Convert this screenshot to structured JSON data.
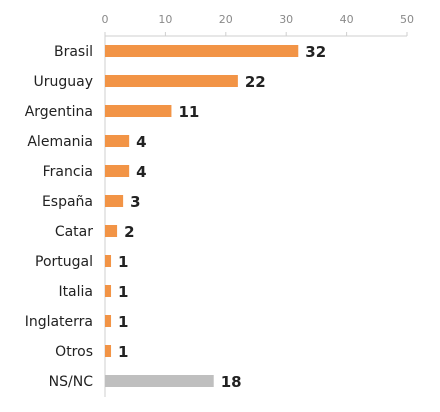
{
  "chart_data": {
    "type": "bar",
    "orientation": "horizontal",
    "categories": [
      "Brasil",
      "Uruguay",
      "Argentina",
      "Alemania",
      "Francia",
      "España",
      "Catar",
      "Portugal",
      "Italia",
      "Inglaterra",
      "Otros",
      "NS/NC"
    ],
    "values": [
      32,
      22,
      11,
      4,
      4,
      3,
      2,
      1,
      1,
      1,
      1,
      18
    ],
    "value_labels": [
      "32",
      "22",
      "11",
      "4",
      "4",
      "3",
      "2",
      "1",
      "1",
      "1",
      "1",
      "18"
    ],
    "xlim": [
      0,
      50
    ],
    "xticks": [
      0,
      10,
      20,
      30,
      40,
      50
    ],
    "xtick_labels": [
      "0",
      "10",
      "20",
      "30",
      "40",
      "50"
    ],
    "xaxis_position": "top",
    "grid": false,
    "legend": "none",
    "colors": {
      "bar": "#F29446",
      "highlight": "#BFBFBF",
      "axis": "#CFCFCF",
      "tick_text": "#8A8A8A",
      "label_text": "#222222"
    },
    "highlight_category": "NS/NC"
  }
}
